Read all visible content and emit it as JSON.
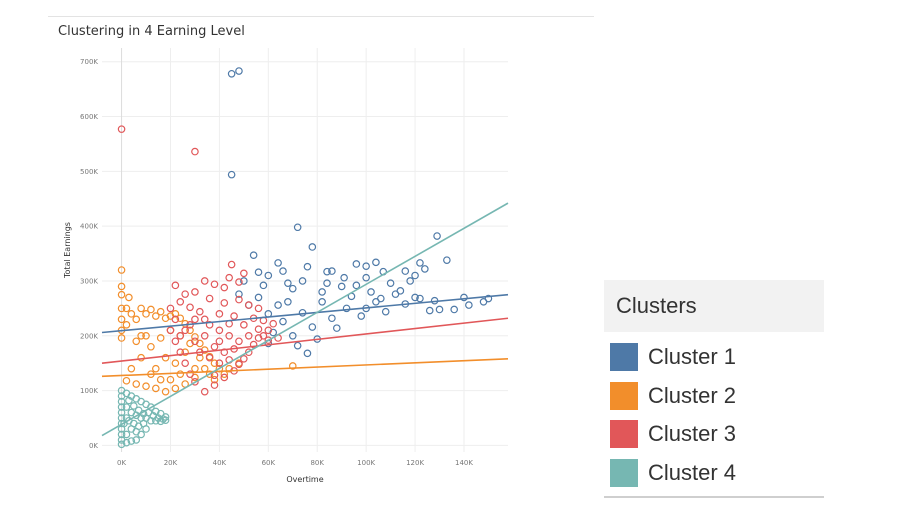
{
  "chart_data": {
    "type": "scatter",
    "title": "Clustering in 4 Earning Level",
    "xlabel": "Overtime",
    "ylabel": "Total Earnings",
    "xlim": [
      -8000,
      158000
    ],
    "ylim": [
      -12000,
      725000
    ],
    "x_ticks": [
      0,
      20000,
      40000,
      60000,
      80000,
      100000,
      120000,
      140000
    ],
    "x_tick_labels": [
      "0K",
      "20K",
      "40K",
      "60K",
      "80K",
      "100K",
      "120K",
      "140K"
    ],
    "y_ticks": [
      0,
      100000,
      200000,
      300000,
      400000,
      500000,
      600000,
      700000
    ],
    "y_tick_labels": [
      "0K",
      "100K",
      "200K",
      "300K",
      "400K",
      "500K",
      "600K",
      "700K"
    ],
    "grid": true,
    "marker": "hollow-circle",
    "legend": {
      "title": "Clusters",
      "position": "right",
      "entries": [
        "Cluster 1",
        "Cluster 2",
        "Cluster 3",
        "Cluster 4"
      ]
    },
    "series": [
      {
        "name": "Cluster 1",
        "color": "#4e79a7",
        "trend": [
          [
            -8000,
            206000
          ],
          [
            158000,
            275000
          ]
        ],
        "points": [
          [
            45000,
            678000
          ],
          [
            48000,
            683000
          ],
          [
            45000,
            494000
          ],
          [
            72000,
            398000
          ],
          [
            129000,
            382000
          ],
          [
            54000,
            347000
          ],
          [
            64000,
            333000
          ],
          [
            78000,
            362000
          ],
          [
            96000,
            331000
          ],
          [
            100000,
            327000
          ],
          [
            107000,
            317000
          ],
          [
            122000,
            333000
          ],
          [
            133000,
            338000
          ],
          [
            124000,
            322000
          ],
          [
            91000,
            306000
          ],
          [
            84000,
            317000
          ],
          [
            60000,
            310000
          ],
          [
            68000,
            296000
          ],
          [
            74000,
            300000
          ],
          [
            90000,
            290000
          ],
          [
            102000,
            280000
          ],
          [
            112000,
            276000
          ],
          [
            120000,
            270000
          ],
          [
            128000,
            264000
          ],
          [
            140000,
            270000
          ],
          [
            148000,
            262000
          ],
          [
            130000,
            248000
          ],
          [
            116000,
            258000
          ],
          [
            104000,
            262000
          ],
          [
            94000,
            272000
          ],
          [
            82000,
            280000
          ],
          [
            70000,
            286000
          ],
          [
            58000,
            292000
          ],
          [
            50000,
            300000
          ],
          [
            56000,
            270000
          ],
          [
            64000,
            256000
          ],
          [
            74000,
            242000
          ],
          [
            86000,
            232000
          ],
          [
            98000,
            236000
          ],
          [
            108000,
            244000
          ],
          [
            126000,
            246000
          ],
          [
            136000,
            248000
          ],
          [
            66000,
            226000
          ],
          [
            78000,
            216000
          ],
          [
            88000,
            214000
          ],
          [
            62000,
            206000
          ],
          [
            70000,
            200000
          ],
          [
            80000,
            194000
          ],
          [
            60000,
            186000
          ],
          [
            72000,
            182000
          ],
          [
            76000,
            168000
          ],
          [
            52000,
            256000
          ],
          [
            48000,
            276000
          ],
          [
            110000,
            296000
          ],
          [
            118000,
            300000
          ],
          [
            100000,
            306000
          ],
          [
            86000,
            318000
          ],
          [
            66000,
            318000
          ],
          [
            76000,
            326000
          ],
          [
            56000,
            316000
          ],
          [
            92000,
            250000
          ],
          [
            100000,
            250000
          ],
          [
            60000,
            240000
          ],
          [
            68000,
            262000
          ],
          [
            82000,
            262000
          ],
          [
            84000,
            296000
          ],
          [
            96000,
            292000
          ],
          [
            106000,
            268000
          ],
          [
            114000,
            282000
          ],
          [
            122000,
            268000
          ],
          [
            142000,
            256000
          ],
          [
            150000,
            268000
          ],
          [
            116000,
            318000
          ],
          [
            104000,
            334000
          ],
          [
            120000,
            310000
          ]
        ]
      },
      {
        "name": "Cluster 2",
        "color": "#f28e2b",
        "trend": [
          [
            -8000,
            126000
          ],
          [
            158000,
            158000
          ]
        ],
        "points": [
          [
            0,
            320000
          ],
          [
            0,
            290000
          ],
          [
            0,
            275000
          ],
          [
            0,
            250000
          ],
          [
            0,
            230000
          ],
          [
            0,
            210000
          ],
          [
            0,
            196000
          ],
          [
            2000,
            250000
          ],
          [
            3000,
            270000
          ],
          [
            2000,
            220000
          ],
          [
            4000,
            240000
          ],
          [
            6000,
            230000
          ],
          [
            8000,
            250000
          ],
          [
            10000,
            240000
          ],
          [
            12000,
            248000
          ],
          [
            14000,
            236000
          ],
          [
            16000,
            244000
          ],
          [
            18000,
            232000
          ],
          [
            20000,
            236000
          ],
          [
            22000,
            240000
          ],
          [
            24000,
            232000
          ],
          [
            26000,
            222000
          ],
          [
            28000,
            210000
          ],
          [
            30000,
            198000
          ],
          [
            32000,
            186000
          ],
          [
            34000,
            174000
          ],
          [
            36000,
            162000
          ],
          [
            38000,
            150000
          ],
          [
            40000,
            140000
          ],
          [
            36000,
            130000
          ],
          [
            30000,
            124000
          ],
          [
            26000,
            112000
          ],
          [
            22000,
            104000
          ],
          [
            18000,
            98000
          ],
          [
            14000,
            104000
          ],
          [
            10000,
            108000
          ],
          [
            6000,
            112000
          ],
          [
            2000,
            118000
          ],
          [
            4000,
            140000
          ],
          [
            8000,
            160000
          ],
          [
            12000,
            180000
          ],
          [
            16000,
            196000
          ],
          [
            20000,
            210000
          ],
          [
            24000,
            200000
          ],
          [
            28000,
            186000
          ],
          [
            32000,
            160000
          ],
          [
            34000,
            140000
          ],
          [
            38000,
            120000
          ],
          [
            14000,
            140000
          ],
          [
            18000,
            160000
          ],
          [
            22000,
            150000
          ],
          [
            26000,
            170000
          ],
          [
            10000,
            200000
          ],
          [
            6000,
            190000
          ],
          [
            30000,
            140000
          ],
          [
            20000,
            120000
          ],
          [
            16000,
            120000
          ],
          [
            24000,
            130000
          ],
          [
            12000,
            130000
          ],
          [
            8000,
            200000
          ],
          [
            44000,
            140000
          ],
          [
            48000,
            150000
          ],
          [
            70000,
            145000
          ],
          [
            42000,
            130000
          ]
        ]
      },
      {
        "name": "Cluster 3",
        "color": "#e15759",
        "trend": [
          [
            -8000,
            150000
          ],
          [
            158000,
            232000
          ]
        ],
        "points": [
          [
            0,
            577000
          ],
          [
            30000,
            536000
          ],
          [
            45000,
            330000
          ],
          [
            50000,
            314000
          ],
          [
            44000,
            306000
          ],
          [
            48000,
            298000
          ],
          [
            22000,
            292000
          ],
          [
            34000,
            300000
          ],
          [
            42000,
            288000
          ],
          [
            38000,
            294000
          ],
          [
            26000,
            276000
          ],
          [
            30000,
            280000
          ],
          [
            36000,
            268000
          ],
          [
            42000,
            260000
          ],
          [
            48000,
            266000
          ],
          [
            52000,
            256000
          ],
          [
            56000,
            250000
          ],
          [
            24000,
            262000
          ],
          [
            20000,
            250000
          ],
          [
            28000,
            252000
          ],
          [
            32000,
            244000
          ],
          [
            40000,
            240000
          ],
          [
            46000,
            236000
          ],
          [
            54000,
            232000
          ],
          [
            58000,
            228000
          ],
          [
            62000,
            222000
          ],
          [
            60000,
            210000
          ],
          [
            56000,
            196000
          ],
          [
            54000,
            184000
          ],
          [
            52000,
            170000
          ],
          [
            50000,
            158000
          ],
          [
            48000,
            148000
          ],
          [
            46000,
            136000
          ],
          [
            42000,
            124000
          ],
          [
            38000,
            110000
          ],
          [
            34000,
            98000
          ],
          [
            30000,
            116000
          ],
          [
            28000,
            130000
          ],
          [
            26000,
            150000
          ],
          [
            24000,
            170000
          ],
          [
            22000,
            190000
          ],
          [
            20000,
            210000
          ],
          [
            22000,
            230000
          ],
          [
            30000,
            230000
          ],
          [
            36000,
            220000
          ],
          [
            40000,
            210000
          ],
          [
            44000,
            200000
          ],
          [
            48000,
            190000
          ],
          [
            34000,
            200000
          ],
          [
            38000,
            180000
          ],
          [
            42000,
            170000
          ],
          [
            46000,
            176000
          ],
          [
            50000,
            220000
          ],
          [
            44000,
            222000
          ],
          [
            40000,
            190000
          ],
          [
            36000,
            160000
          ],
          [
            40000,
            150000
          ],
          [
            32000,
            170000
          ],
          [
            30000,
            190000
          ],
          [
            26000,
            210000
          ],
          [
            28000,
            220000
          ],
          [
            56000,
            212000
          ],
          [
            58000,
            200000
          ],
          [
            60000,
            192000
          ],
          [
            64000,
            196000
          ],
          [
            34000,
            230000
          ],
          [
            24000,
            200000
          ],
          [
            38000,
            128000
          ],
          [
            44000,
            156000
          ],
          [
            52000,
            200000
          ]
        ]
      },
      {
        "name": "Cluster 4",
        "color": "#76b7b2",
        "trend": [
          [
            -8000,
            18000
          ],
          [
            158000,
            442000
          ]
        ],
        "points": [
          [
            0,
            100000
          ],
          [
            0,
            90000
          ],
          [
            0,
            80000
          ],
          [
            0,
            70000
          ],
          [
            0,
            60000
          ],
          [
            0,
            50000
          ],
          [
            0,
            40000
          ],
          [
            0,
            30000
          ],
          [
            0,
            20000
          ],
          [
            0,
            10000
          ],
          [
            0,
            2000
          ],
          [
            2000,
            95000
          ],
          [
            2000,
            70000
          ],
          [
            2000,
            50000
          ],
          [
            2000,
            20000
          ],
          [
            4000,
            90000
          ],
          [
            4000,
            60000
          ],
          [
            4000,
            30000
          ],
          [
            4000,
            8000
          ],
          [
            6000,
            85000
          ],
          [
            6000,
            55000
          ],
          [
            6000,
            25000
          ],
          [
            8000,
            80000
          ],
          [
            8000,
            50000
          ],
          [
            8000,
            20000
          ],
          [
            10000,
            75000
          ],
          [
            10000,
            50000
          ],
          [
            10000,
            30000
          ],
          [
            12000,
            70000
          ],
          [
            12000,
            45000
          ],
          [
            14000,
            62000
          ],
          [
            14000,
            45000
          ],
          [
            16000,
            58000
          ],
          [
            16000,
            44000
          ],
          [
            18000,
            52000
          ],
          [
            18000,
            46000
          ],
          [
            3000,
            82000
          ],
          [
            5000,
            72000
          ],
          [
            7000,
            64000
          ],
          [
            9000,
            58000
          ],
          [
            11000,
            60000
          ],
          [
            13000,
            54000
          ],
          [
            1000,
            40000
          ],
          [
            3000,
            45000
          ],
          [
            5000,
            40000
          ],
          [
            7000,
            35000
          ],
          [
            9000,
            40000
          ],
          [
            15000,
            50000
          ],
          [
            17000,
            48000
          ],
          [
            6000,
            10000
          ],
          [
            2000,
            5000
          ]
        ]
      }
    ]
  }
}
